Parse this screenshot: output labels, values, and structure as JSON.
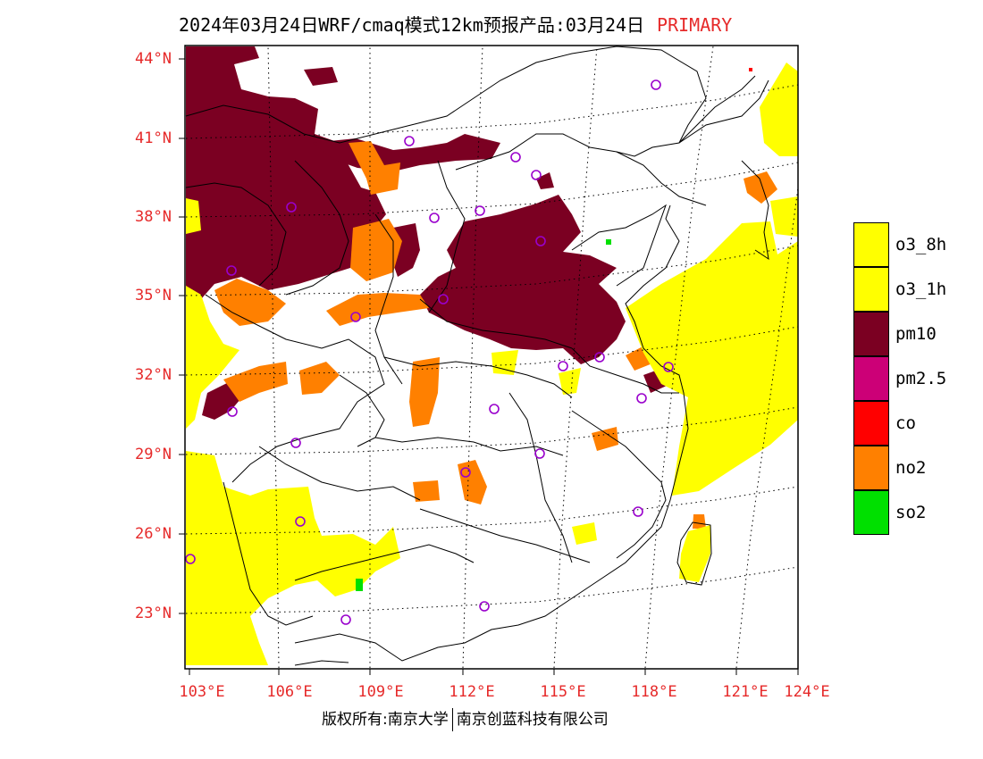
{
  "title": {
    "text": "2024年03月24日WRF/cmaq模式12km预报产品:03月24日",
    "tag": "PRIMARY"
  },
  "copyright": {
    "left": "版权所有:南京大学",
    "right": "南京创蓝科技有限公司"
  },
  "map": {
    "lon_range": [
      103,
      124
    ],
    "lat_range": [
      21,
      44.5
    ],
    "lat_labels": [
      "44°N",
      "41°N",
      "38°N",
      "35°N",
      "32°N",
      "29°N",
      "26°N",
      "23°N"
    ],
    "lon_labels": [
      "103°E",
      "106°E",
      "109°E",
      "112°E",
      "115°E",
      "118°E",
      "121°E",
      "124°E"
    ],
    "label_color": "#e62a2a"
  },
  "legend": [
    {
      "label": "o3_8h",
      "color": "#ffff00"
    },
    {
      "label": "o3_1h",
      "color": "#ffff00"
    },
    {
      "label": "pm10",
      "color": "#7b0022"
    },
    {
      "label": "pm2.5",
      "color": "#cc0077"
    },
    {
      "label": "co",
      "color": "#ff0000"
    },
    {
      "label": "no2",
      "color": "#ff8000"
    },
    {
      "label": "so2",
      "color": "#00e000"
    }
  ],
  "colors": {
    "o3": "#ffff00",
    "pm10": "#7b0022",
    "no2": "#ff8000",
    "so2": "#00e000",
    "co": "#ff0000",
    "station": "#9900cc"
  }
}
